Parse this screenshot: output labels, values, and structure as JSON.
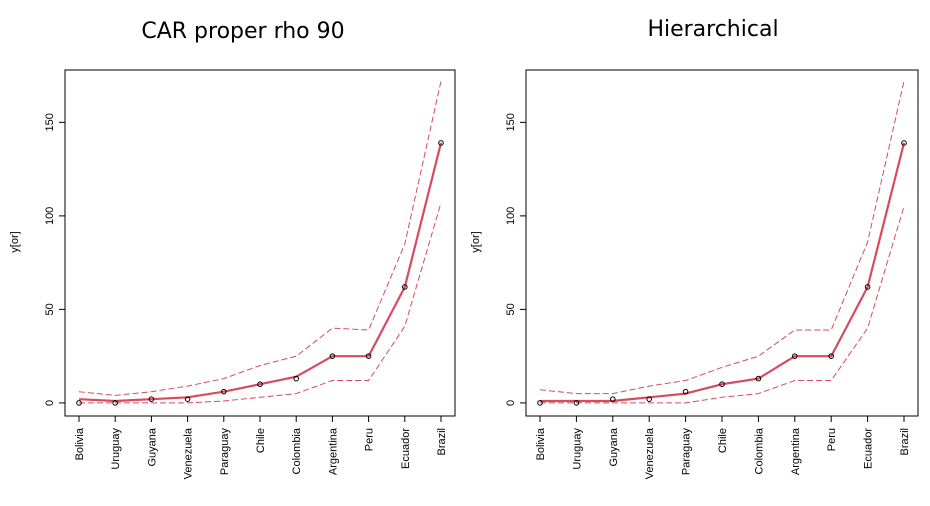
{
  "colors": {
    "estimate": "#d64b5e",
    "interval": "#d64b5e",
    "points": "#000000",
    "frame": "#000000"
  },
  "chart_data": [
    {
      "type": "line",
      "title": "CAR proper rho 90",
      "ylabel": "y[or]",
      "xlabel": "",
      "categories": [
        "Bolivia",
        "Uruguay",
        "Guyana",
        "Venezuela",
        "Paraguay",
        "Chile",
        "Colombia",
        "Argentina",
        "Peru",
        "Ecuador",
        "Brazil"
      ],
      "yticks": [
        0,
        50,
        100,
        150
      ],
      "ylim": [
        -7,
        178
      ],
      "observed": [
        0,
        0,
        2,
        2,
        6,
        10,
        13,
        25,
        25,
        62,
        139
      ],
      "estimate": [
        2,
        1,
        2,
        3,
        6,
        10,
        14,
        25,
        25,
        62,
        139
      ],
      "lower": [
        0,
        0,
        0,
        0,
        1,
        3,
        5,
        12,
        12,
        41,
        107
      ],
      "upper": [
        6,
        4,
        6,
        9,
        13,
        20,
        25,
        40,
        39,
        85,
        172
      ],
      "grid": false
    },
    {
      "type": "line",
      "title": "Hierarchical",
      "ylabel": "y[or]",
      "xlabel": "",
      "categories": [
        "Bolivia",
        "Uruguay",
        "Guyana",
        "Venezuela",
        "Paraguay",
        "Chile",
        "Colombia",
        "Argentina",
        "Peru",
        "Ecuador",
        "Brazil"
      ],
      "yticks": [
        0,
        50,
        100,
        150
      ],
      "ylim": [
        -7,
        178
      ],
      "observed": [
        0,
        0,
        2,
        2,
        6,
        10,
        13,
        25,
        25,
        62,
        139
      ],
      "estimate": [
        1,
        1,
        1,
        3,
        5,
        10,
        13,
        25,
        25,
        62,
        139
      ],
      "lower": [
        0,
        0,
        0,
        0,
        0,
        3,
        5,
        12,
        12,
        40,
        105
      ],
      "upper": [
        7,
        5,
        5,
        9,
        12,
        19,
        25,
        39,
        39,
        86,
        172
      ],
      "grid": false
    }
  ]
}
